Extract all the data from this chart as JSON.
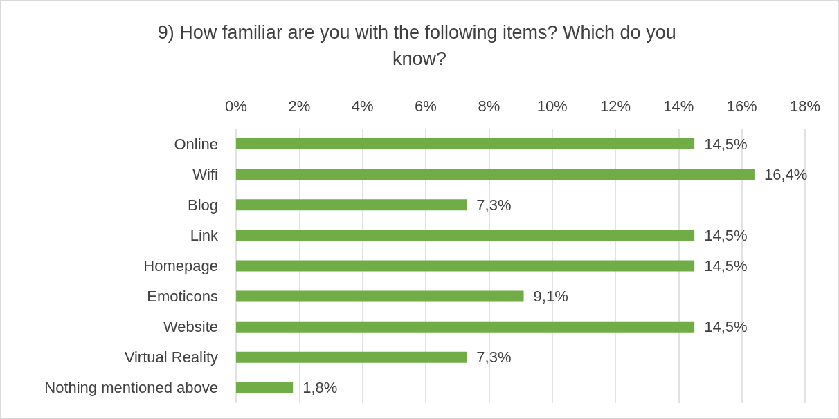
{
  "chart_data": {
    "type": "bar",
    "orientation": "horizontal",
    "title": "9) How familiar are you with the following items? Which do you know?",
    "categories": [
      "Online",
      "Wifi",
      "Blog",
      "Link",
      "Homepage",
      "Emoticons",
      "Website",
      "Virtual Reality",
      "Nothing mentioned above"
    ],
    "values": [
      14.5,
      16.4,
      7.3,
      14.5,
      14.5,
      9.1,
      14.5,
      7.3,
      1.8
    ],
    "value_labels": [
      "14,5%",
      "16,4%",
      "7,3%",
      "14,5%",
      "14,5%",
      "9,1%",
      "14,5%",
      "7,3%",
      "1,8%"
    ],
    "color": "#70ad47",
    "xlim": [
      0,
      18
    ],
    "xticks": [
      {
        "value": 0,
        "label": "0%"
      },
      {
        "value": 2,
        "label": "2%"
      },
      {
        "value": 4,
        "label": "4%"
      },
      {
        "value": 6,
        "label": "6%"
      },
      {
        "value": 8,
        "label": "8%"
      },
      {
        "value": 10,
        "label": "10%"
      },
      {
        "value": 12,
        "label": "12%"
      },
      {
        "value": 14,
        "label": "14%"
      },
      {
        "value": 16,
        "label": "16%"
      },
      {
        "value": 18,
        "label": "18%"
      }
    ],
    "grid": "x"
  }
}
